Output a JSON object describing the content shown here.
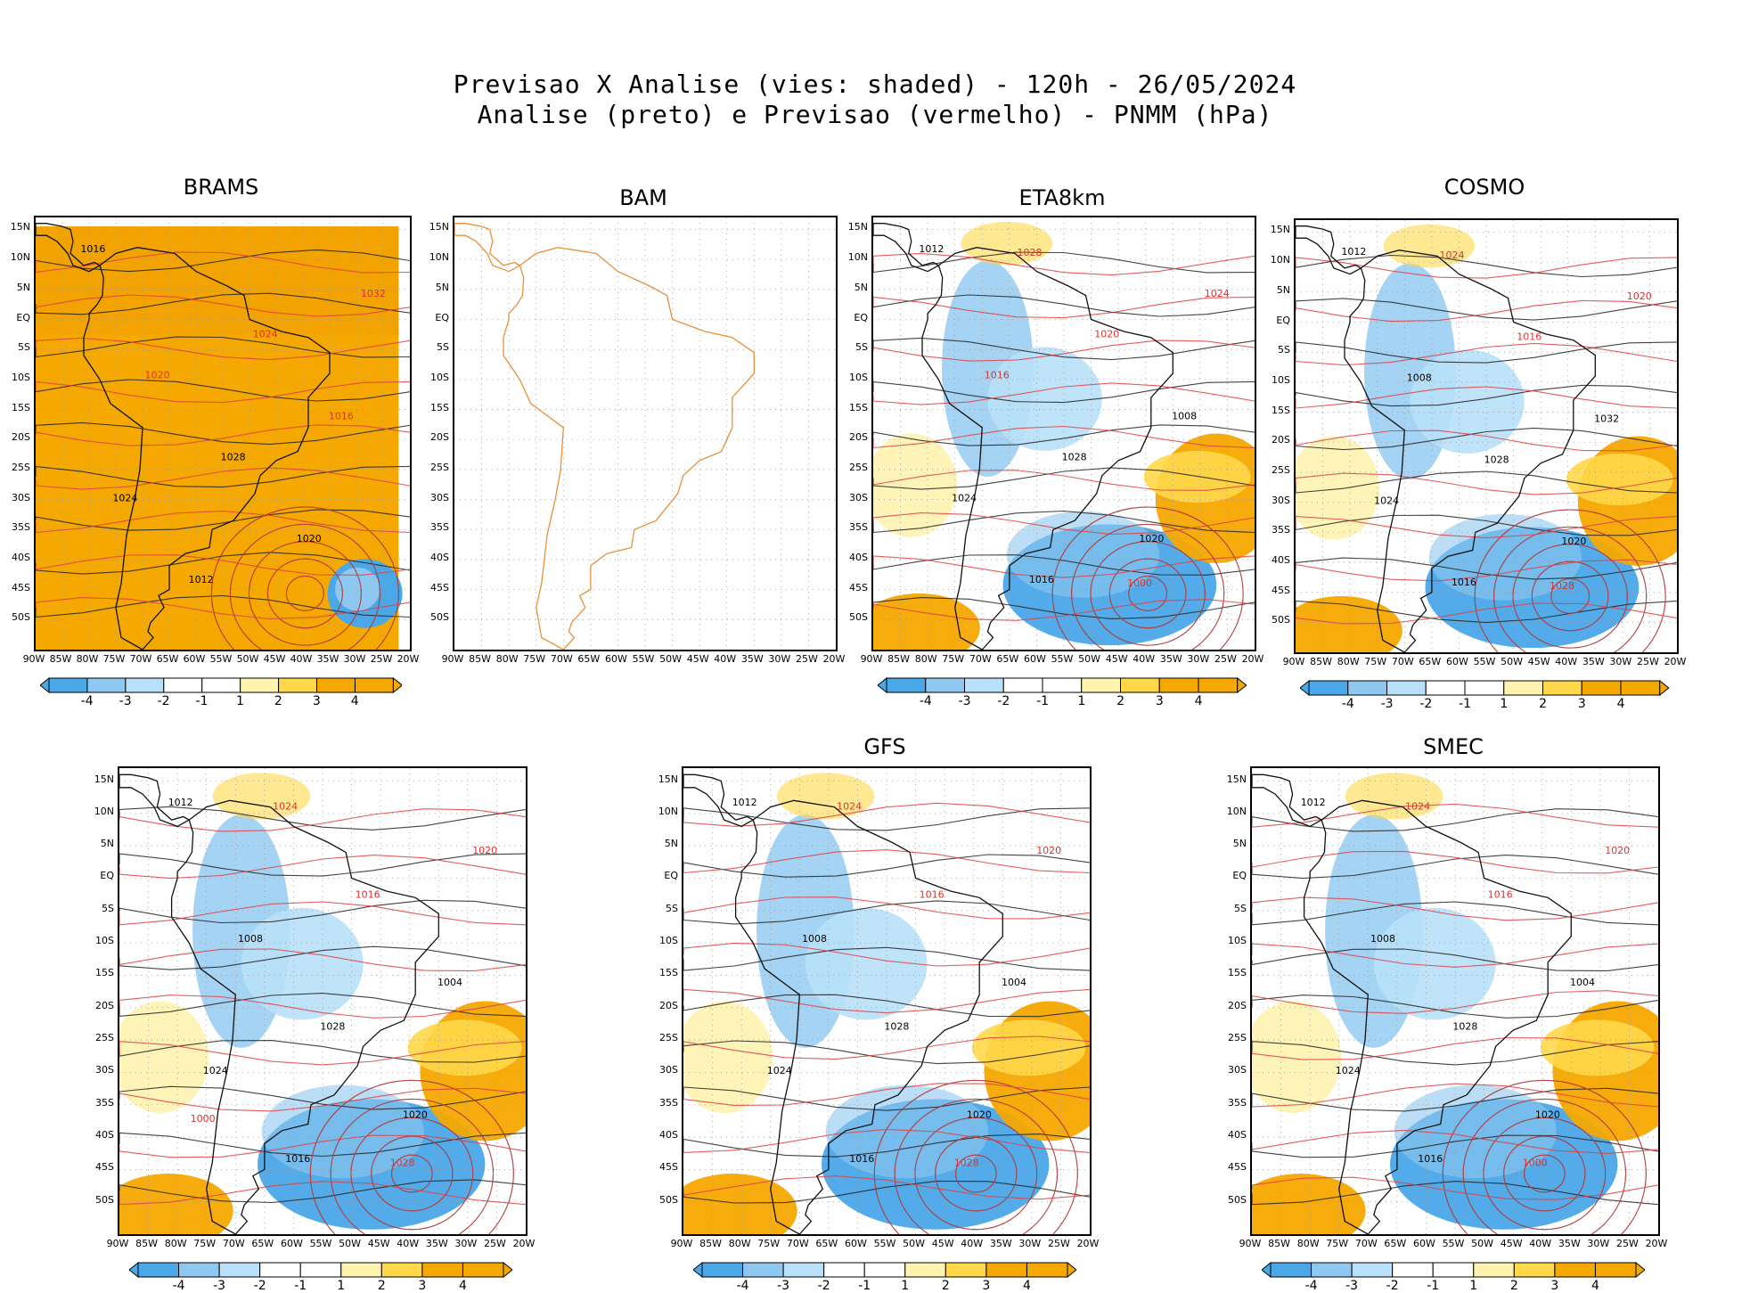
{
  "header": {
    "line1": "Previsao X Analise (vies: shaded) - 120h - 26/05/2024",
    "line2": "Analise (preto) e Previsao (vermelho) - PNMM (hPa)"
  },
  "axes": {
    "lat_labels": [
      "15N",
      "10N",
      "5N",
      "EQ",
      "5S",
      "10S",
      "15S",
      "20S",
      "25S",
      "30S",
      "35S",
      "40S",
      "45S",
      "50S"
    ],
    "lon_labels": [
      "90W",
      "85W",
      "80W",
      "75W",
      "70W",
      "65W",
      "60W",
      "55W",
      "50W",
      "45W",
      "40W",
      "35W",
      "30W",
      "25W",
      "20W"
    ]
  },
  "colorbar": {
    "labels": [
      "-4",
      "-3",
      "-2",
      "-1",
      "1",
      "2",
      "3",
      "4"
    ],
    "colors": [
      "#4aa8e8",
      "#8ec8f0",
      "#b8e0f8",
      "#dff2fb",
      "#ffffff",
      "#fff3b0",
      "#ffd84a",
      "#f5a800"
    ]
  },
  "models": [
    {
      "name": "BRAMS",
      "style": "warm",
      "contours_black": [
        "1016",
        "1012",
        "1020",
        "1024",
        "1028"
      ],
      "contours_red": [
        "1016",
        "1020",
        "1024",
        "1032"
      ]
    },
    {
      "name": "BAM",
      "style": "empty",
      "contours_black": [],
      "contours_red": []
    },
    {
      "name": "ETA8km",
      "style": "mixed",
      "contours_black": [
        "1012",
        "1016",
        "1020",
        "1024",
        "1028",
        "1008"
      ],
      "contours_red": [
        "1016",
        "1020",
        "1024",
        "1028",
        "1000"
      ]
    },
    {
      "name": "COSMO",
      "style": "mixed",
      "contours_black": [
        "1012",
        "1016",
        "1020",
        "1024",
        "1028",
        "1032",
        "1008"
      ],
      "contours_red": [
        "1016",
        "1020",
        "1024",
        "1028"
      ]
    },
    {
      "name": "",
      "style": "mixed",
      "contours_black": [
        "1012",
        "1016",
        "1020",
        "1024",
        "1028",
        "1004",
        "1008"
      ],
      "contours_red": [
        "1016",
        "1020",
        "1024",
        "1028",
        "1000"
      ]
    },
    {
      "name": "GFS",
      "style": "mixed",
      "contours_black": [
        "1012",
        "1016",
        "1020",
        "1024",
        "1028",
        "1004",
        "1008"
      ],
      "contours_red": [
        "1016",
        "1020",
        "1024",
        "1028"
      ]
    },
    {
      "name": "SMEC",
      "style": "mixed",
      "contours_black": [
        "1012",
        "1016",
        "1020",
        "1024",
        "1028",
        "1004",
        "1008"
      ],
      "contours_red": [
        "1016",
        "1020",
        "1024",
        "1000"
      ]
    }
  ]
}
